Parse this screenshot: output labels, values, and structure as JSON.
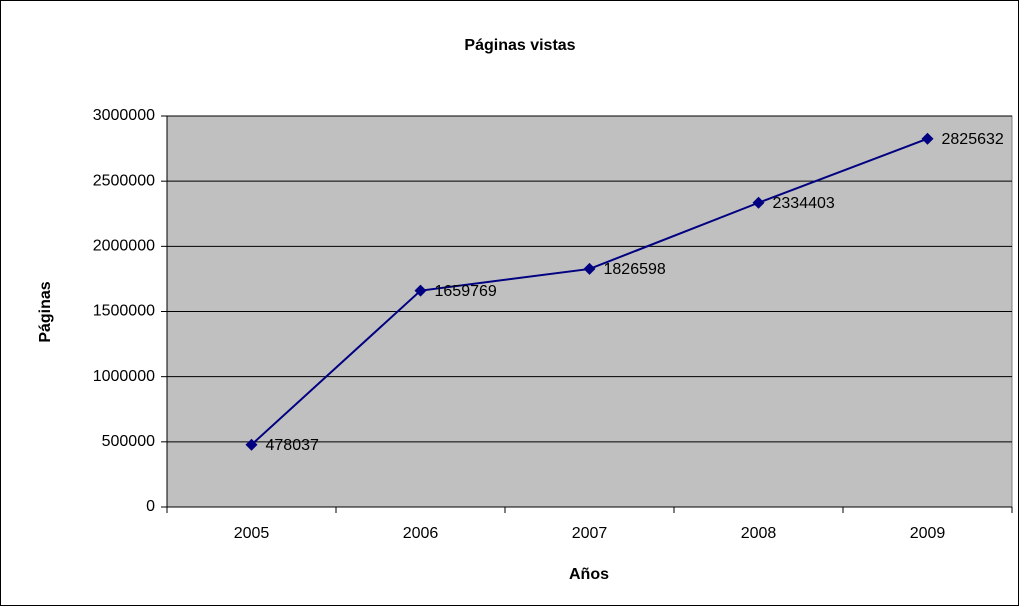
{
  "chart_data": {
    "type": "line",
    "title": "Páginas vistas",
    "x_label": "Años",
    "y_label": "Páginas",
    "categories": [
      "2005",
      "2006",
      "2007",
      "2008",
      "2009"
    ],
    "series": [
      {
        "name": "Páginas",
        "color": "#000080",
        "values": [
          478037,
          1659769,
          1826598,
          2334403,
          2825632
        ]
      }
    ],
    "ylim": [
      0,
      3000000
    ],
    "yticks": [
      0,
      500000,
      1000000,
      1500000,
      2000000,
      2500000,
      3000000
    ],
    "grid": true,
    "plot_background": "#c0c0c0",
    "legend": false
  }
}
